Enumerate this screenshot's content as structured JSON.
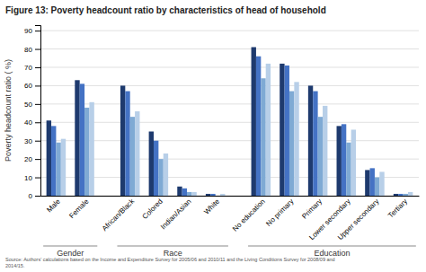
{
  "chart_data": {
    "type": "bar",
    "title": "Figure 13: Poverty headcount ratio by characteristics of head of household",
    "y_label": "Poverty headcount ratio ( %)",
    "categories": [
      "Male",
      "Female",
      "African/Black",
      "Colored",
      "Indian/Asian",
      "White",
      "No education",
      "No primary",
      "Primary",
      "Lower secondary",
      "Upper secondary",
      "Tertiary"
    ],
    "series": [
      {
        "color": "#1e3a6e",
        "values": [
          41,
          63,
          60,
          35,
          5,
          1,
          81,
          72,
          60,
          38,
          14,
          1
        ]
      },
      {
        "color": "#4472c4",
        "values": [
          38,
          61,
          57,
          30,
          4,
          1,
          76,
          71,
          57,
          39,
          15,
          1
        ]
      },
      {
        "color": "#7faad4",
        "values": [
          29,
          48,
          43,
          20,
          2,
          0,
          64,
          57,
          43,
          29,
          10,
          1
        ]
      },
      {
        "color": "#b8cfe8",
        "values": [
          31,
          51,
          46,
          23,
          2,
          1,
          72,
          62,
          49,
          36,
          13,
          2
        ]
      }
    ],
    "groups": [
      {
        "label": "Gender",
        "indices": [
          0,
          1
        ]
      },
      {
        "label": "Race",
        "indices": [
          2,
          3,
          4,
          5
        ]
      },
      {
        "label": "Education",
        "indices": [
          6,
          7,
          8,
          9,
          10,
          11
        ]
      }
    ],
    "source": [
      "Source: Authors' calculations based on the Income and Expenditure Survey for 2005/06 and 2010/11 and the Living Conditions Survey for 2008/09 and",
      "2014/15."
    ],
    "ylim": [
      0,
      93
    ],
    "yticks": [
      0,
      10,
      20,
      30,
      40,
      50,
      60,
      70,
      80,
      90
    ],
    "grid": true
  }
}
